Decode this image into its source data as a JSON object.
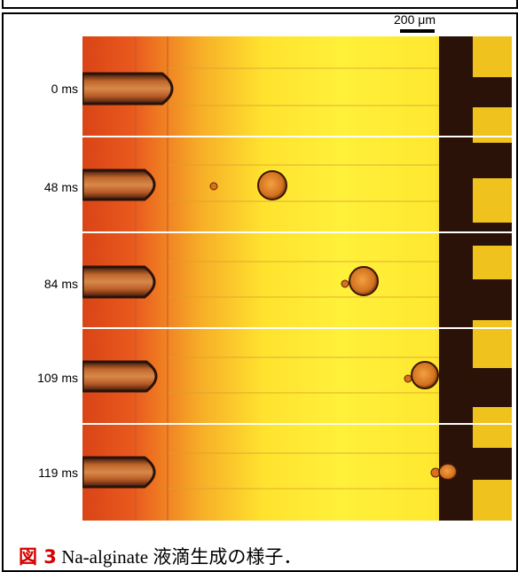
{
  "figure": {
    "scale_label": "200 μm",
    "frames": [
      {
        "time_label": "0 ms"
      },
      {
        "time_label": "48 ms"
      },
      {
        "time_label": "84 ms"
      },
      {
        "time_label": "109 ms"
      },
      {
        "time_label": "119 ms"
      }
    ]
  },
  "caption": {
    "figure_number": "図 3",
    "text": "Na-alginate 液滴生成の様子．"
  },
  "colors": {
    "flow_orange": "#e2541c",
    "flow_yellow": "#ffe830",
    "channel_dark": "#2a1208",
    "frame_divider": "#ffffff",
    "caption_number": "#d40000"
  }
}
